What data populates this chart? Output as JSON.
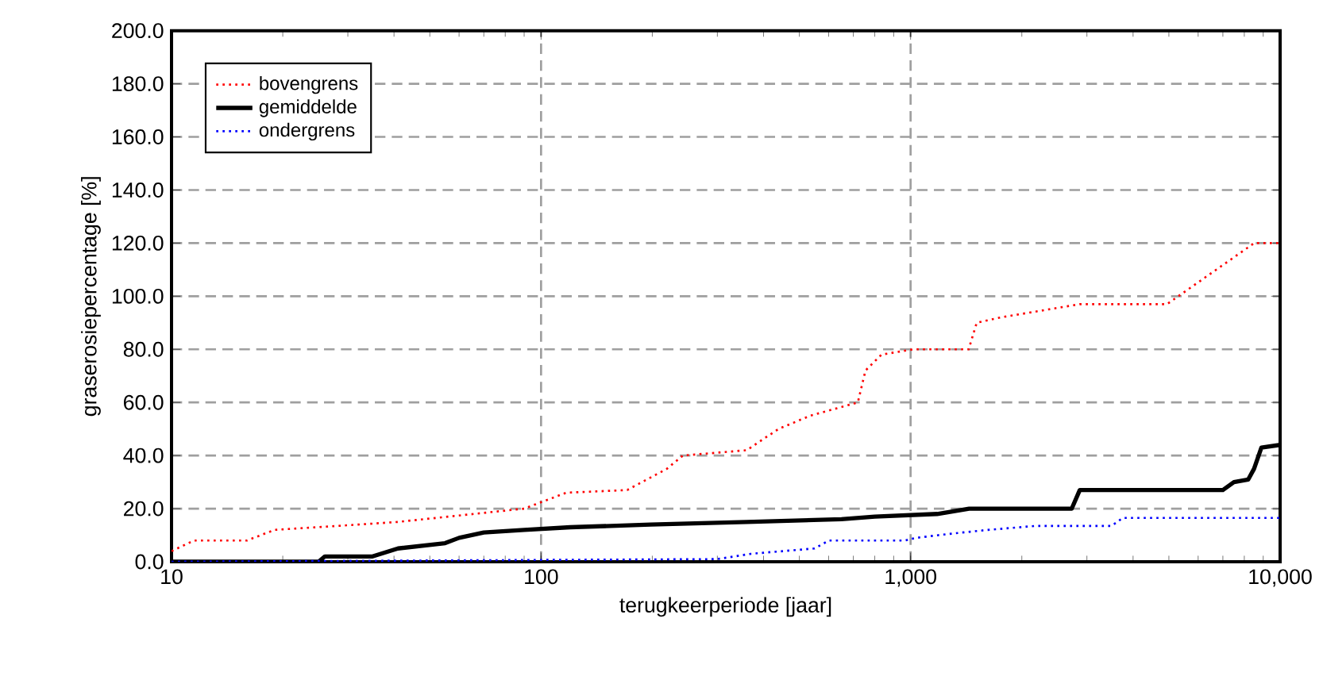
{
  "chart_data": {
    "type": "line",
    "xlabel": "terugkeerperiode [jaar]",
    "ylabel": "graserosiepercentage [%]",
    "log": "x",
    "grid": true,
    "legend": "top left",
    "xlim": [
      10,
      10000
    ],
    "xticks": [
      10,
      100,
      {
        "value": 1000,
        "label": "1,000"
      },
      {
        "value": 10000,
        "label": "10,000"
      }
    ],
    "ylim": [
      0,
      200
    ],
    "yticks": [
      {
        "value": 0,
        "label": "0.0"
      },
      {
        "value": 20,
        "label": "20.0"
      },
      {
        "value": 40,
        "label": "40.0"
      },
      {
        "value": 60,
        "label": "60.0"
      },
      {
        "value": 80,
        "label": "80.0"
      },
      {
        "value": 100,
        "label": "100.0"
      },
      {
        "value": 120,
        "label": "120.0"
      },
      {
        "value": 140,
        "label": "140.0"
      },
      {
        "value": 160,
        "label": "160.0"
      },
      {
        "value": 180,
        "label": "180.0"
      },
      {
        "value": 200,
        "label": "200.0"
      }
    ],
    "series": [
      {
        "name": "bovengrens",
        "color": "#ff0000",
        "line_style": "dotted",
        "x": [
          10,
          11.5,
          16,
          19,
          32,
          41,
          90,
          117,
          171,
          219,
          242,
          360,
          439,
          535,
          720,
          755,
          834,
          1016,
          1436,
          1510,
          1750,
          2870,
          4940,
          8510,
          10000
        ],
        "values": [
          4,
          8,
          8,
          12,
          14,
          15,
          20,
          26,
          27,
          35,
          40,
          42,
          50,
          55,
          60,
          72,
          78,
          80,
          80,
          90,
          92,
          97,
          97,
          120,
          120
        ]
      },
      {
        "name": "gemiddelde",
        "color": "#000000",
        "line_style": "solid",
        "x": [
          10,
          25,
          26,
          35,
          41,
          55,
          60,
          70,
          90,
          120,
          198,
          360,
          650,
          800,
          1180,
          1440,
          2730,
          2870,
          7000,
          7500,
          8200,
          8500,
          8900,
          10000
        ],
        "values": [
          0,
          0,
          2,
          2,
          5,
          7,
          9,
          11,
          12,
          13,
          14,
          15,
          16,
          17,
          18,
          20,
          20,
          27,
          27,
          30,
          31,
          35,
          43,
          44
        ]
      },
      {
        "name": "ondergrens",
        "color": "#0000ff",
        "line_style": "dotted",
        "x": [
          10,
          300,
          370,
          550,
          601,
          966,
          1035,
          1275,
          1620,
          2180,
          3500,
          3750,
          10000
        ],
        "values": [
          0,
          1,
          3,
          5,
          8,
          8,
          9,
          10.5,
          12,
          13.5,
          13.5,
          16.5,
          16.5
        ]
      }
    ]
  }
}
